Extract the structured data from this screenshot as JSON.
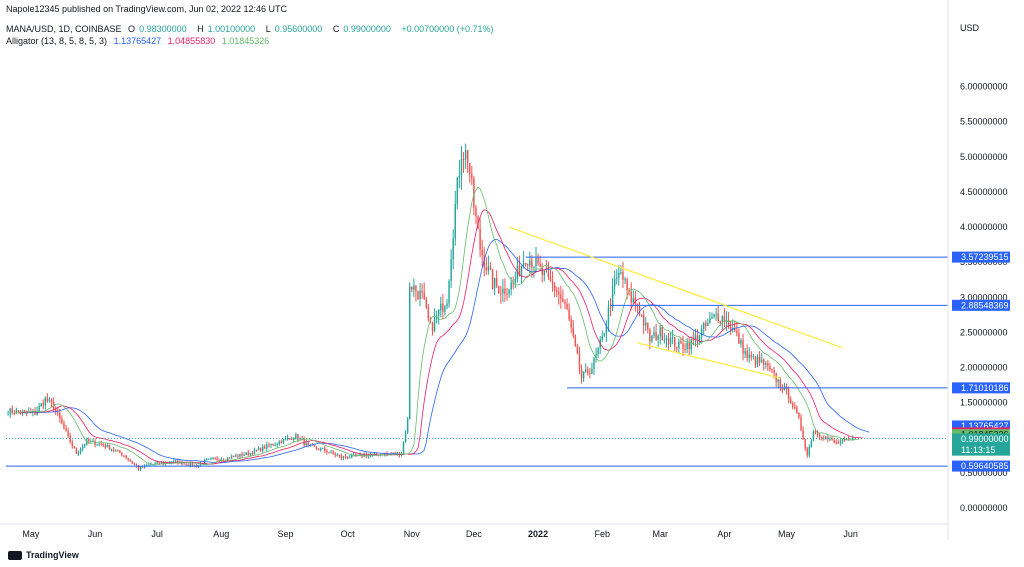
{
  "header": {
    "published": "Napole12345 published on TradingView.com, Jun 02, 2022 12:46 UTC",
    "symbol": "MANA/USD, 1D, COINBASE",
    "ohlc": {
      "o_label": "O",
      "o": "0.98300000",
      "h_label": "H",
      "h": "1.00100000",
      "l_label": "L",
      "l": "0.95600000",
      "c_label": "C",
      "c": "0.99000000",
      "change": "+0.00700000 (+0.71%)"
    },
    "alligator_label": "Alligator (13, 8, 5, 8, 5, 3)",
    "alligator_values": [
      "1.13765427",
      "1.04855830",
      "1.01845326"
    ]
  },
  "currency": "USD",
  "brand": "TradingView",
  "colors": {
    "up": "#26a69a",
    "down": "#ef5350",
    "jaw": "#2962ff",
    "teeth": "#e91e63",
    "lips": "#66bb6a",
    "level_line": "#2962ff",
    "trend_line": "#ffeb3b"
  },
  "chart_data": {
    "type": "candlestick",
    "y_ticks": [
      "6.00000000",
      "5.50000000",
      "5.00000000",
      "4.50000000",
      "4.00000000",
      "3.50000000",
      "3.00000000",
      "2.50000000",
      "2.00000000",
      "1.50000000",
      "1.00000000",
      "0.50000000",
      "0.00000000"
    ],
    "y_tick_values": [
      6,
      5.5,
      5,
      4.5,
      4,
      3.5,
      3,
      2.5,
      2,
      1.5,
      1,
      0.5,
      0
    ],
    "ylim": [
      -0.2,
      6.55
    ],
    "x_labels": [
      {
        "label": "May",
        "date": "2021-05-01"
      },
      {
        "label": "Jun",
        "date": "2021-06-01"
      },
      {
        "label": "Jul",
        "date": "2021-07-01"
      },
      {
        "label": "Aug",
        "date": "2021-08-01"
      },
      {
        "label": "Sep",
        "date": "2021-09-01"
      },
      {
        "label": "Oct",
        "date": "2021-10-01"
      },
      {
        "label": "Nov",
        "date": "2021-11-01"
      },
      {
        "label": "Dec",
        "date": "2021-12-01"
      },
      {
        "label": "2022",
        "date": "2022-01-01"
      },
      {
        "label": "Feb",
        "date": "2022-02-01"
      },
      {
        "label": "Mar",
        "date": "2022-03-01"
      },
      {
        "label": "Apr",
        "date": "2022-04-01"
      },
      {
        "label": "May",
        "date": "2022-05-01"
      },
      {
        "label": "Jun",
        "date": "2022-06-01"
      }
    ],
    "xlim": [
      "2021-04-19",
      "2022-07-18"
    ],
    "price_anchors": [
      [
        "2021-04-20",
        1.38
      ],
      [
        "2021-05-03",
        1.35
      ],
      [
        "2021-05-08",
        1.55
      ],
      [
        "2021-05-12",
        1.45
      ],
      [
        "2021-05-19",
        1.0
      ],
      [
        "2021-05-23",
        0.78
      ],
      [
        "2021-05-28",
        0.95
      ],
      [
        "2021-06-05",
        0.9
      ],
      [
        "2021-06-15",
        0.75
      ],
      [
        "2021-06-22",
        0.56
      ],
      [
        "2021-06-28",
        0.62
      ],
      [
        "2021-07-10",
        0.66
      ],
      [
        "2021-07-20",
        0.6
      ],
      [
        "2021-07-25",
        0.68
      ],
      [
        "2021-08-05",
        0.72
      ],
      [
        "2021-08-15",
        0.78
      ],
      [
        "2021-08-25",
        0.9
      ],
      [
        "2021-09-06",
        1.02
      ],
      [
        "2021-09-12",
        0.88
      ],
      [
        "2021-09-20",
        0.82
      ],
      [
        "2021-09-28",
        0.72
      ],
      [
        "2021-10-05",
        0.74
      ],
      [
        "2021-10-15",
        0.76
      ],
      [
        "2021-10-27",
        0.78
      ],
      [
        "2021-10-30",
        1.25
      ],
      [
        "2021-10-31",
        3.2
      ],
      [
        "2021-11-06",
        3.0
      ],
      [
        "2021-11-10",
        2.55
      ],
      [
        "2021-11-18",
        3.0
      ],
      [
        "2021-11-22",
        4.3
      ],
      [
        "2021-11-25",
        5.1
      ],
      [
        "2021-11-28",
        5.0
      ],
      [
        "2021-12-01",
        4.3
      ],
      [
        "2021-12-04",
        3.7
      ],
      [
        "2021-12-10",
        3.2
      ],
      [
        "2021-12-15",
        3.1
      ],
      [
        "2021-12-20",
        3.2
      ],
      [
        "2021-12-26",
        3.6
      ],
      [
        "2021-12-30",
        3.5
      ],
      [
        "2022-01-05",
        3.25
      ],
      [
        "2022-01-10",
        3.1
      ],
      [
        "2022-01-15",
        2.8
      ],
      [
        "2022-01-22",
        1.85
      ],
      [
        "2022-01-27",
        2.0
      ],
      [
        "2022-02-01",
        2.4
      ],
      [
        "2022-02-07",
        3.2
      ],
      [
        "2022-02-10",
        3.35
      ],
      [
        "2022-02-14",
        3.0
      ],
      [
        "2022-02-18",
        2.9
      ],
      [
        "2022-02-24",
        2.4
      ],
      [
        "2022-03-01",
        2.5
      ],
      [
        "2022-03-10",
        2.3
      ],
      [
        "2022-03-16",
        2.35
      ],
      [
        "2022-03-22",
        2.55
      ],
      [
        "2022-03-28",
        2.75
      ],
      [
        "2022-04-01",
        2.7
      ],
      [
        "2022-04-06",
        2.5
      ],
      [
        "2022-04-12",
        2.15
      ],
      [
        "2022-04-20",
        2.05
      ],
      [
        "2022-04-27",
        1.8
      ],
      [
        "2022-05-02",
        1.6
      ],
      [
        "2022-05-07",
        1.25
      ],
      [
        "2022-05-11",
        0.75
      ],
      [
        "2022-05-14",
        1.1
      ],
      [
        "2022-05-20",
        1.0
      ],
      [
        "2022-05-25",
        0.92
      ],
      [
        "2022-06-01",
        0.98
      ]
    ],
    "series": [
      {
        "name": "Jaw",
        "value": 1.13765427,
        "color": "#2962ff"
      },
      {
        "name": "Teeth",
        "value": 1.0485583,
        "color": "#e91e63"
      },
      {
        "name": "Lips",
        "value": 1.01845326,
        "color": "#66bb6a"
      }
    ],
    "last_price": {
      "value": 0.99,
      "label": "0.99000000",
      "countdown": "11:13:15"
    },
    "horizontal_levels": [
      {
        "value": 3.57239515,
        "label": "3.57239515",
        "from": "2021-12-26"
      },
      {
        "value": 2.88548369,
        "label": "2.88548369",
        "from": "2022-02-05"
      },
      {
        "value": 1.71010186,
        "label": "1.71010186",
        "from": "2022-01-15"
      },
      {
        "value": 0.59640585,
        "label": "0.59640585",
        "from": "2021-04-19"
      }
    ],
    "trend_lines": [
      {
        "from": [
          "2021-12-18",
          4.0
        ],
        "to": [
          "2022-05-28",
          2.28
        ]
      },
      {
        "from": [
          "2022-02-18",
          2.35
        ],
        "to": [
          "2022-04-28",
          1.85
        ]
      }
    ],
    "grid": false
  }
}
